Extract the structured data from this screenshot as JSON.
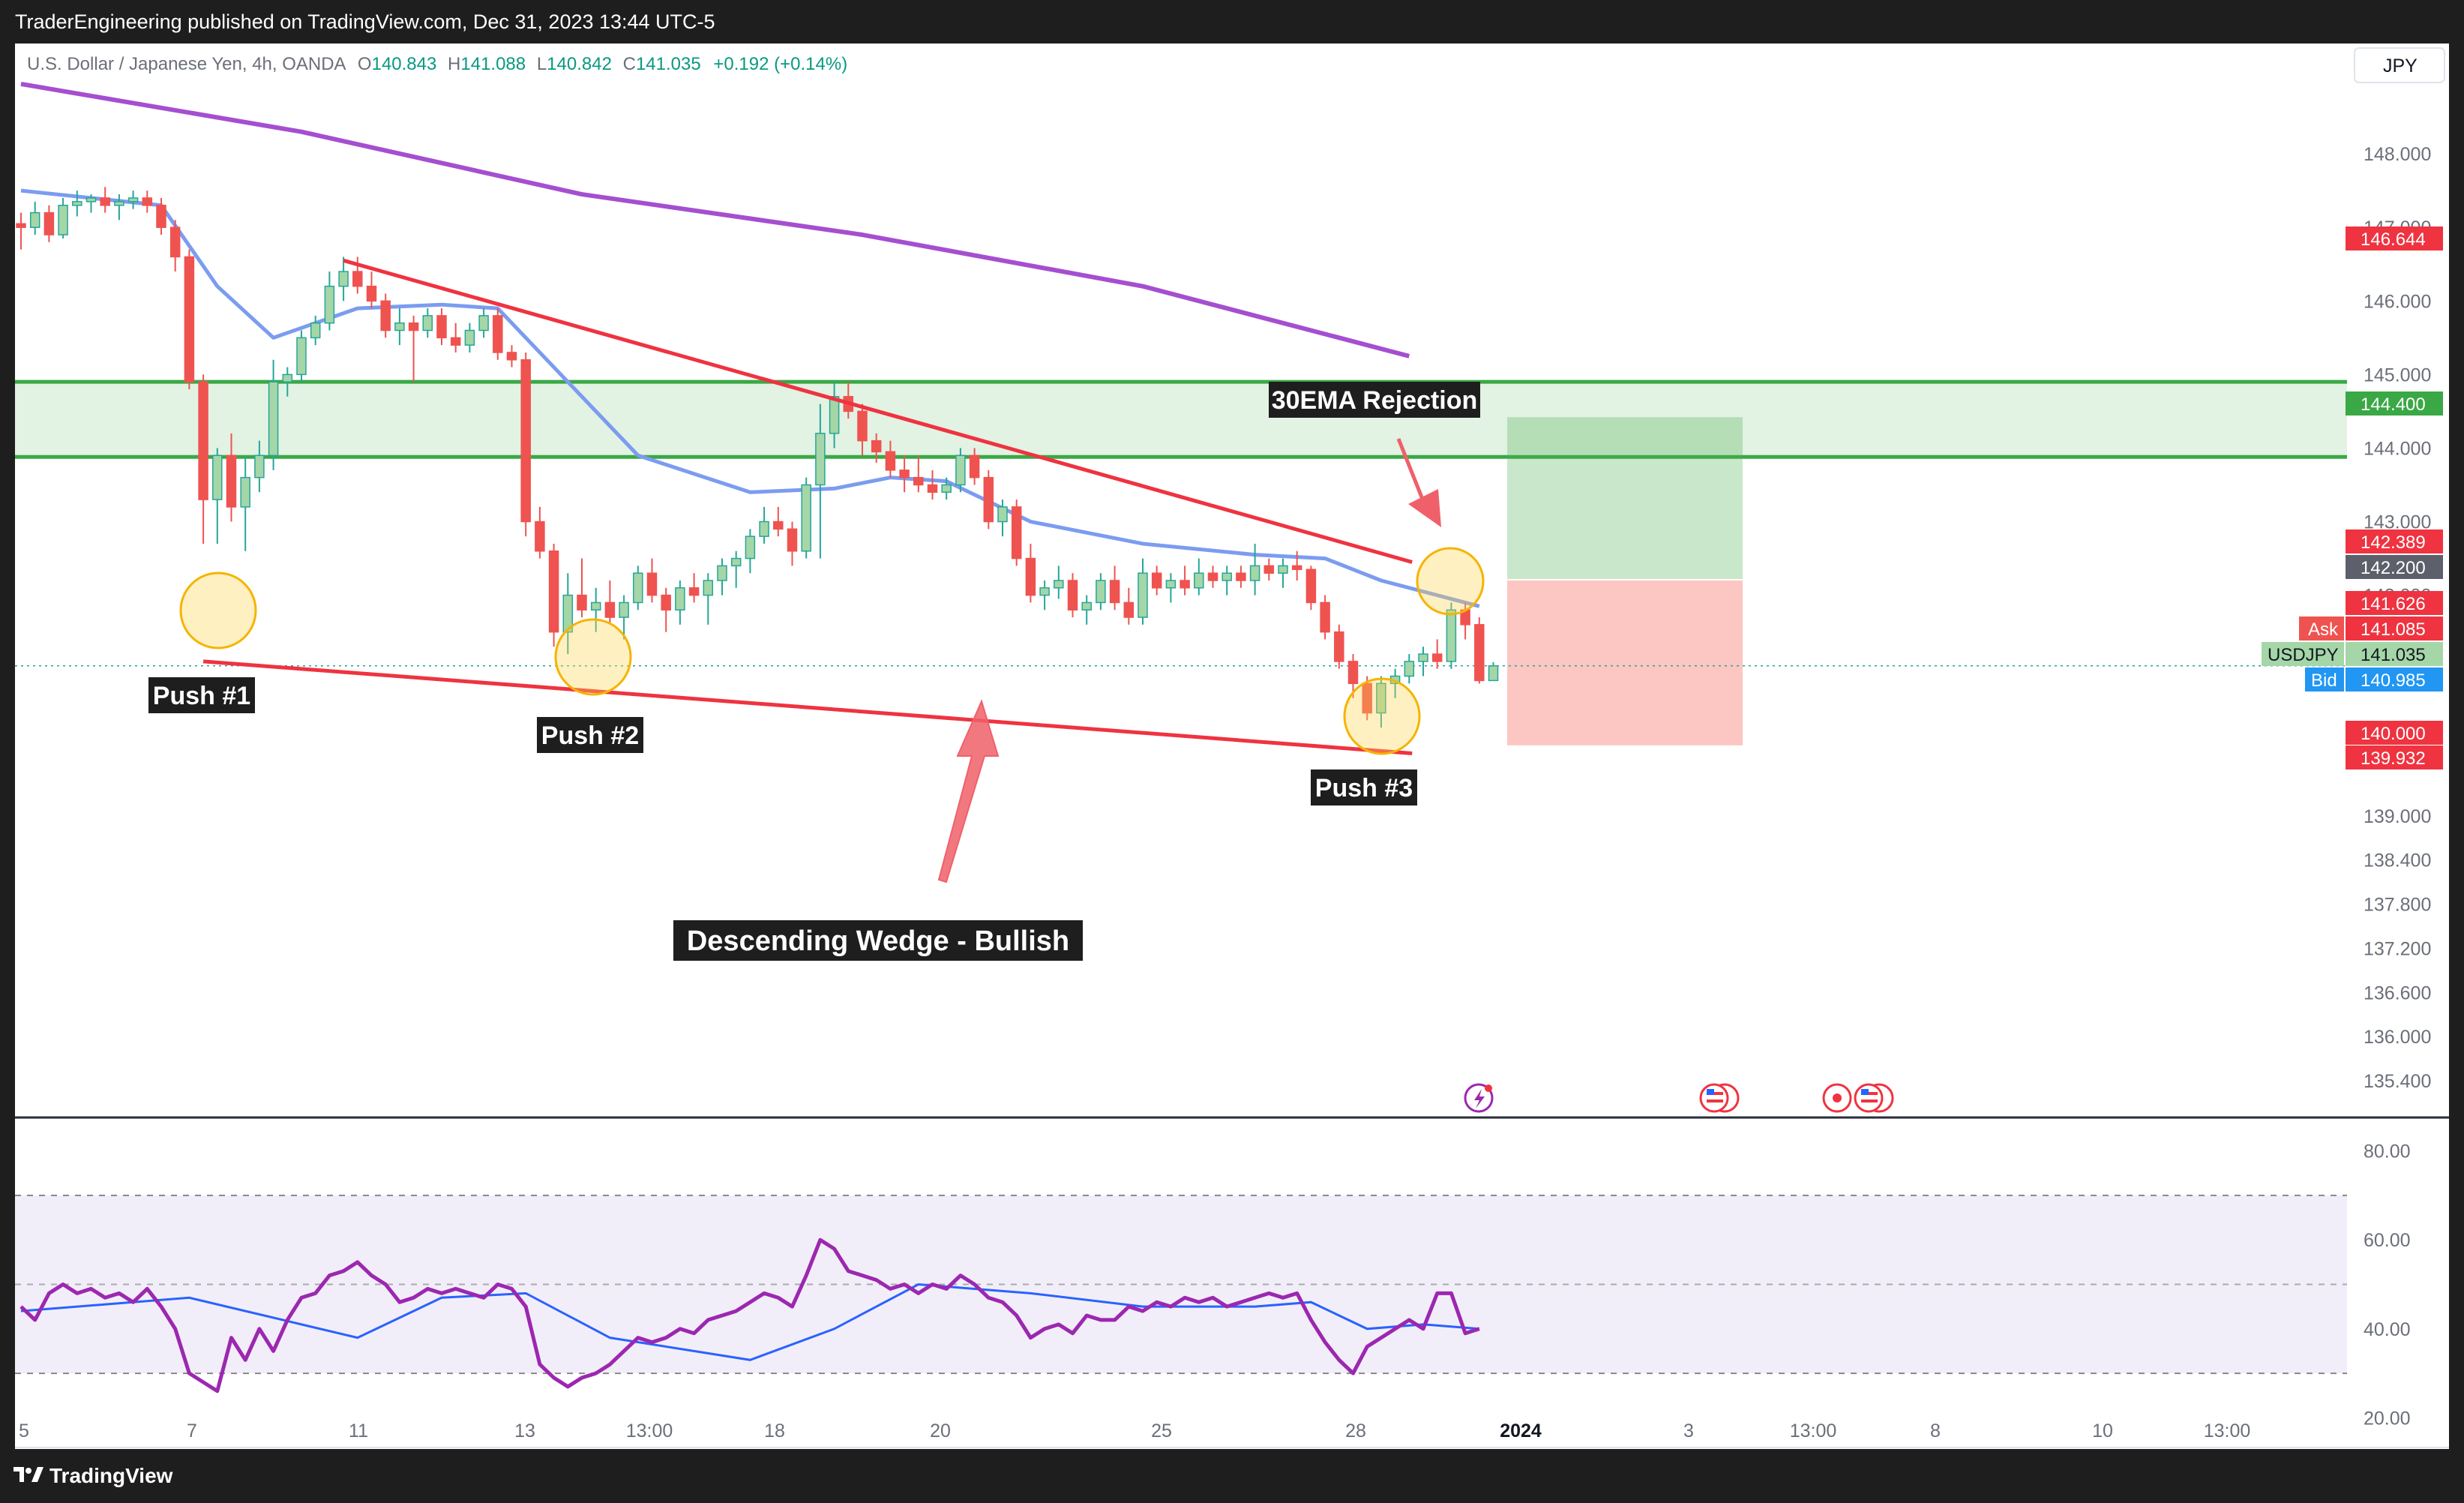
{
  "header": {
    "published": "TraderEngineering published on TradingView.com, Dec 31, 2023 13:44 UTC-5"
  },
  "legend": {
    "symbol_desc": "U.S. Dollar / Japanese Yen, 4h, OANDA",
    "open_label": "O",
    "open": "140.843",
    "high_label": "H",
    "high": "141.088",
    "low_label": "L",
    "low": "140.842",
    "close_label": "C",
    "close": "141.035",
    "change": "+0.192 (+0.14%)"
  },
  "currency": "JPY",
  "price_badges": {
    "ema200": "146.644",
    "target": "144.400",
    "ema30": "142.389",
    "entry": "142.200",
    "last_bar": "141.626",
    "ask_label": "Ask",
    "ask": "141.085",
    "symbol": "USDJPY",
    "last": "141.035",
    "bid_label": "Bid",
    "bid": "140.985",
    "stop": "140.000",
    "close_prev": "139.932"
  },
  "annotations": {
    "push1": "Push #1",
    "push2": "Push #2",
    "push3": "Push #3",
    "ema_rejection": "30EMA Rejection",
    "wedge": "Descending Wedge - Bullish"
  },
  "colors": {
    "up": "#26a69a",
    "down": "#ef5350",
    "ema30": "#7b9cf0",
    "ema200": "#a54fd0",
    "wedge": "#ef3340",
    "zone": "#3aa845",
    "rsi": "#9c27b0",
    "rsi_ma": "#2962ff",
    "profit": "#4caf50",
    "loss": "#f44336",
    "circle": "#ffd54f"
  },
  "footer": {
    "brand": "TradingView"
  },
  "icons": [
    "tradingview-logo-icon",
    "us-flag-icon",
    "event-icon",
    "flash-icon"
  ],
  "chart_data": {
    "type": "candlestick",
    "x_tick_labels": [
      "5",
      "7",
      "11",
      "13",
      "13:00",
      "18",
      "20",
      "25",
      "28",
      "2024",
      "3",
      "13:00",
      "8",
      "10",
      "13:00"
    ],
    "y_tick_labels": [
      "148.000",
      "147.000",
      "146.000",
      "145.000",
      "144.000",
      "143.000",
      "142.000",
      "139.000",
      "138.400",
      "137.800",
      "137.200",
      "136.600",
      "136.000",
      "135.400"
    ],
    "rsi_tick_labels": [
      "80.00",
      "60.00",
      "40.00",
      "20.00"
    ],
    "ohlc": [
      [
        147.05,
        147.2,
        146.7,
        147.0
      ],
      [
        147.0,
        147.35,
        146.9,
        147.2
      ],
      [
        147.2,
        147.3,
        146.8,
        146.9
      ],
      [
        146.9,
        147.4,
        146.85,
        147.3
      ],
      [
        147.3,
        147.5,
        147.15,
        147.35
      ],
      [
        147.35,
        147.45,
        147.2,
        147.4
      ],
      [
        147.4,
        147.55,
        147.2,
        147.3
      ],
      [
        147.3,
        147.45,
        147.1,
        147.35
      ],
      [
        147.35,
        147.5,
        147.25,
        147.4
      ],
      [
        147.4,
        147.5,
        147.2,
        147.3
      ],
      [
        147.3,
        147.4,
        146.9,
        147.0
      ],
      [
        147.0,
        147.1,
        146.4,
        146.6
      ],
      [
        146.6,
        146.7,
        144.8,
        144.9
      ],
      [
        144.9,
        145.0,
        142.7,
        143.3
      ],
      [
        143.3,
        144.0,
        142.7,
        143.9
      ],
      [
        143.9,
        144.2,
        143.0,
        143.2
      ],
      [
        143.2,
        143.9,
        142.6,
        143.6
      ],
      [
        143.6,
        144.1,
        143.4,
        143.9
      ],
      [
        143.9,
        145.2,
        143.7,
        144.9
      ],
      [
        144.9,
        145.1,
        144.7,
        145.0
      ],
      [
        145.0,
        145.6,
        144.9,
        145.5
      ],
      [
        145.5,
        145.8,
        145.4,
        145.7
      ],
      [
        145.7,
        146.4,
        145.6,
        146.2
      ],
      [
        146.2,
        146.6,
        146.0,
        146.4
      ],
      [
        146.4,
        146.6,
        146.1,
        146.2
      ],
      [
        146.2,
        146.4,
        145.9,
        146.0
      ],
      [
        146.0,
        146.1,
        145.5,
        145.6
      ],
      [
        145.6,
        145.9,
        145.4,
        145.7
      ],
      [
        145.7,
        145.8,
        144.9,
        145.6
      ],
      [
        145.6,
        145.9,
        145.5,
        145.8
      ],
      [
        145.8,
        145.9,
        145.4,
        145.5
      ],
      [
        145.5,
        145.7,
        145.3,
        145.4
      ],
      [
        145.4,
        145.7,
        145.3,
        145.6
      ],
      [
        145.6,
        145.9,
        145.5,
        145.8
      ],
      [
        145.8,
        145.9,
        145.2,
        145.3
      ],
      [
        145.3,
        145.4,
        145.1,
        145.2
      ],
      [
        145.2,
        145.3,
        142.8,
        143.0
      ],
      [
        143.0,
        143.2,
        142.5,
        142.6
      ],
      [
        142.6,
        142.7,
        141.3,
        141.5
      ],
      [
        141.5,
        142.3,
        141.2,
        142.0
      ],
      [
        142.0,
        142.5,
        141.7,
        141.8
      ],
      [
        141.8,
        142.1,
        141.5,
        141.9
      ],
      [
        141.9,
        142.2,
        141.6,
        141.7
      ],
      [
        141.7,
        142.0,
        141.4,
        141.9
      ],
      [
        141.9,
        142.4,
        141.8,
        142.3
      ],
      [
        142.3,
        142.5,
        141.9,
        142.0
      ],
      [
        142.0,
        142.1,
        141.5,
        141.8
      ],
      [
        141.8,
        142.2,
        141.6,
        142.1
      ],
      [
        142.1,
        142.3,
        141.9,
        142.0
      ],
      [
        142.0,
        142.3,
        141.6,
        142.2
      ],
      [
        142.2,
        142.5,
        142.0,
        142.4
      ],
      [
        142.4,
        142.6,
        142.1,
        142.5
      ],
      [
        142.5,
        142.9,
        142.3,
        142.8
      ],
      [
        142.8,
        143.2,
        142.7,
        143.0
      ],
      [
        143.0,
        143.2,
        142.8,
        142.9
      ],
      [
        142.9,
        143.0,
        142.4,
        142.6
      ],
      [
        142.6,
        143.6,
        142.5,
        143.5
      ],
      [
        143.5,
        144.6,
        142.5,
        144.2
      ],
      [
        144.2,
        144.9,
        144.0,
        144.7
      ],
      [
        144.7,
        144.9,
        144.4,
        144.5
      ],
      [
        144.5,
        144.6,
        143.9,
        144.1
      ],
      [
        144.1,
        144.2,
        143.8,
        143.95
      ],
      [
        143.95,
        144.1,
        143.6,
        143.7
      ],
      [
        143.7,
        143.9,
        143.4,
        143.6
      ],
      [
        143.6,
        143.9,
        143.4,
        143.5
      ],
      [
        143.5,
        143.7,
        143.3,
        143.4
      ],
      [
        143.4,
        143.6,
        143.3,
        143.5
      ],
      [
        143.5,
        144.0,
        143.4,
        143.9
      ],
      [
        143.9,
        144.0,
        143.5,
        143.6
      ],
      [
        143.6,
        143.7,
        142.9,
        143.0
      ],
      [
        143.0,
        143.3,
        142.8,
        143.2
      ],
      [
        143.2,
        143.3,
        142.4,
        142.5
      ],
      [
        142.5,
        142.7,
        141.9,
        142.0
      ],
      [
        142.0,
        142.2,
        141.8,
        142.1
      ],
      [
        142.1,
        142.4,
        141.95,
        142.2
      ],
      [
        142.2,
        142.3,
        141.7,
        141.8
      ],
      [
        141.8,
        142.0,
        141.6,
        141.9
      ],
      [
        141.9,
        142.3,
        141.8,
        142.2
      ],
      [
        142.2,
        142.4,
        141.8,
        141.9
      ],
      [
        141.9,
        142.1,
        141.6,
        141.7
      ],
      [
        141.7,
        142.5,
        141.6,
        142.3
      ],
      [
        142.3,
        142.4,
        142.0,
        142.1
      ],
      [
        142.1,
        142.3,
        141.9,
        142.2
      ],
      [
        142.2,
        142.4,
        142.0,
        142.1
      ],
      [
        142.1,
        142.5,
        142.0,
        142.3
      ],
      [
        142.3,
        142.4,
        142.1,
        142.2
      ],
      [
        142.2,
        142.4,
        142.0,
        142.3
      ],
      [
        142.3,
        142.4,
        142.1,
        142.2
      ],
      [
        142.2,
        142.7,
        142.0,
        142.4
      ],
      [
        142.4,
        142.5,
        142.2,
        142.3
      ],
      [
        142.3,
        142.5,
        142.1,
        142.4
      ],
      [
        142.4,
        142.6,
        142.2,
        142.35
      ],
      [
        142.35,
        142.4,
        141.8,
        141.9
      ],
      [
        141.9,
        142.0,
        141.4,
        141.5
      ],
      [
        141.5,
        141.6,
        141.0,
        141.1
      ],
      [
        141.1,
        141.2,
        140.6,
        140.8
      ],
      [
        140.8,
        140.9,
        140.3,
        140.4
      ],
      [
        140.4,
        140.9,
        140.2,
        140.8
      ],
      [
        140.8,
        141.0,
        140.6,
        140.9
      ],
      [
        140.9,
        141.2,
        140.8,
        141.1
      ],
      [
        141.1,
        141.3,
        140.9,
        141.2
      ],
      [
        141.2,
        141.4,
        141.0,
        141.1
      ],
      [
        141.1,
        141.9,
        141.0,
        141.8
      ],
      [
        141.8,
        141.9,
        141.4,
        141.6
      ],
      [
        141.6,
        141.7,
        140.8,
        140.84
      ],
      [
        140.84,
        141.09,
        140.84,
        141.04
      ]
    ],
    "ema30": [
      [
        0,
        147.5
      ],
      [
        10,
        147.3
      ],
      [
        14,
        146.2
      ],
      [
        18,
        145.5
      ],
      [
        24,
        145.9
      ],
      [
        30,
        145.95
      ],
      [
        34,
        145.9
      ],
      [
        38,
        145.1
      ],
      [
        44,
        143.9
      ],
      [
        52,
        143.4
      ],
      [
        58,
        143.45
      ],
      [
        62,
        143.6
      ],
      [
        66,
        143.55
      ],
      [
        72,
        143.0
      ],
      [
        80,
        142.7
      ],
      [
        88,
        142.55
      ],
      [
        93,
        142.5
      ],
      [
        97,
        142.2
      ],
      [
        102,
        141.95
      ],
      [
        104,
        141.85
      ]
    ],
    "ema200": [
      [
        0,
        148.95
      ],
      [
        20,
        148.3
      ],
      [
        40,
        147.45
      ],
      [
        60,
        146.9
      ],
      [
        80,
        146.2
      ],
      [
        99,
        145.25
      ]
    ],
    "zone": [
      143.88,
      144.9
    ],
    "wedge_upper": [
      [
        23,
        146.55
      ],
      [
        96,
        142.45
      ]
    ],
    "wedge_lower": [
      [
        13,
        141.1
      ],
      [
        96,
        139.85
      ]
    ],
    "position": {
      "entry": 142.2,
      "target": 144.4,
      "stop": 140.0
    },
    "rsi": [
      45,
      42,
      48,
      50,
      48,
      49,
      47,
      48,
      46,
      49,
      45,
      40,
      30,
      28,
      26,
      38,
      33,
      40,
      35,
      42,
      47,
      48,
      52,
      53,
      55,
      52,
      50,
      46,
      47,
      49,
      48,
      49,
      48,
      47,
      50,
      49,
      45,
      32,
      29,
      27,
      29,
      30,
      32,
      35,
      38,
      37,
      38,
      40,
      39,
      42,
      43,
      44,
      46,
      48,
      47,
      45,
      52,
      60,
      58,
      53,
      52,
      51,
      49,
      50,
      48,
      50,
      49,
      52,
      50,
      47,
      46,
      43,
      38,
      40,
      41,
      39,
      43,
      42,
      42,
      45,
      44,
      46,
      45,
      47,
      46,
      47,
      45,
      46,
      47,
      48,
      47,
      48,
      42,
      37,
      33,
      30,
      36,
      38,
      40,
      42,
      40,
      48,
      48,
      39,
      40
    ],
    "rsi_ma": [
      [
        0,
        44
      ],
      [
        12,
        47
      ],
      [
        20,
        41
      ],
      [
        24,
        38
      ],
      [
        30,
        47
      ],
      [
        36,
        48
      ],
      [
        42,
        38
      ],
      [
        52,
        33
      ],
      [
        58,
        40
      ],
      [
        64,
        50
      ],
      [
        72,
        48
      ],
      [
        80,
        45
      ],
      [
        88,
        45
      ],
      [
        92,
        46
      ],
      [
        96,
        40
      ],
      [
        100,
        41
      ],
      [
        104,
        40
      ]
    ],
    "y_range": [
      134.9,
      149.5
    ],
    "rsi_range": [
      15,
      85
    ]
  }
}
